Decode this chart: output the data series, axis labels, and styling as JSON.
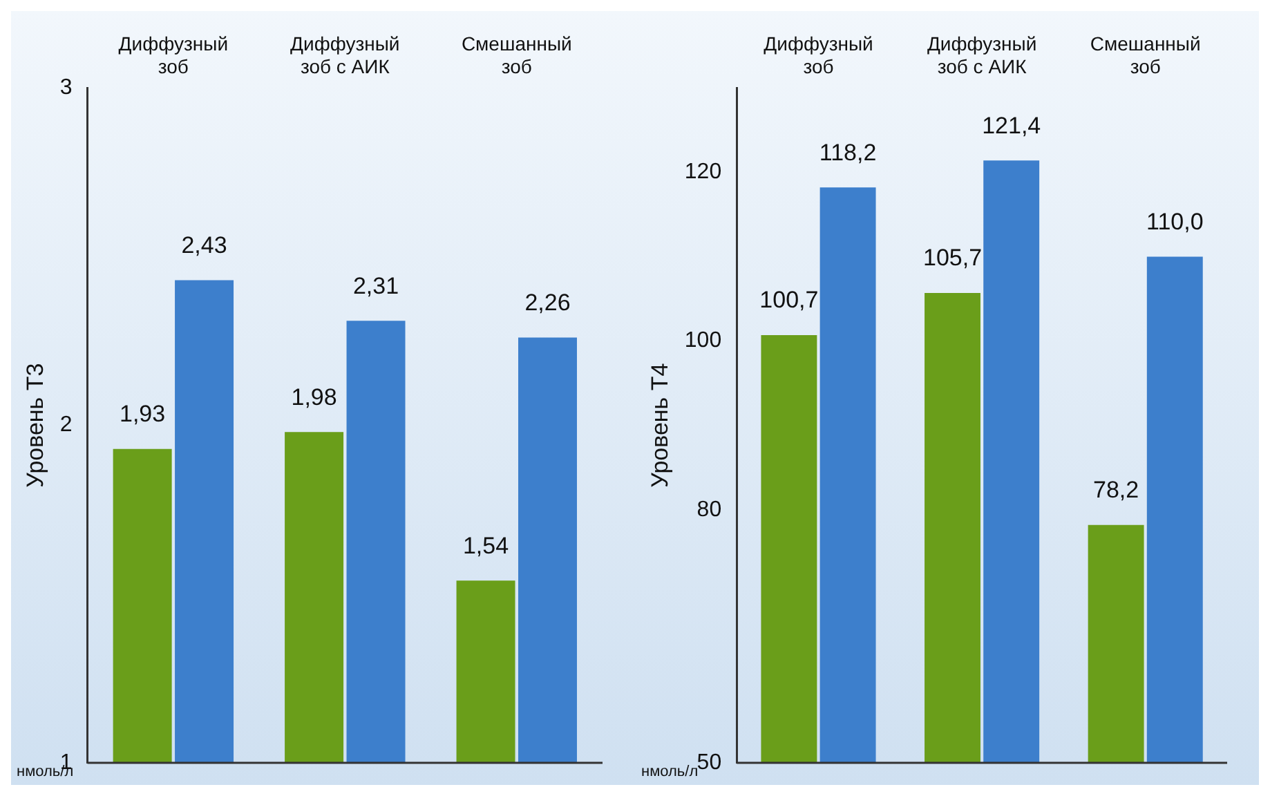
{
  "chart_data": [
    {
      "type": "bar",
      "ylabel": "Уровень Т3",
      "categories": [
        "Диффузный зоб",
        "Диффузный зоб с АИК",
        "Смешанный зоб"
      ],
      "ylim": [
        1,
        3
      ],
      "yticks": [
        1,
        2,
        3
      ],
      "grid": false,
      "legend": false,
      "annotations": [
        "нмоль/л"
      ],
      "series": [
        {
          "color": "#6a9e1a",
          "values": [
            1.93,
            1.98,
            1.54
          ],
          "value_labels": [
            "1,93",
            "1,98",
            "1,54"
          ]
        },
        {
          "color": "#3d7fcc",
          "values": [
            2.43,
            2.31,
            2.26
          ],
          "value_labels": [
            "2,43",
            "2,31",
            "2,26"
          ]
        }
      ]
    },
    {
      "type": "bar",
      "ylabel": "Уровень Т4",
      "categories": [
        "Диффузный зоб",
        "Диффузный зоб с АИК",
        "Смешанный зоб"
      ],
      "ylim": [
        50,
        130
      ],
      "yticks": [
        50,
        80,
        100,
        120
      ],
      "grid": false,
      "legend": false,
      "annotations": [
        "нмоль/л"
      ],
      "series": [
        {
          "color": "#6a9e1a",
          "values": [
            100.7,
            105.7,
            78.2
          ],
          "value_labels": [
            "100,7",
            "105,7",
            "78,2"
          ]
        },
        {
          "color": "#3d7fcc",
          "values": [
            118.2,
            121.4,
            110.0
          ],
          "value_labels": [
            "118,2",
            "121,4",
            "110,0"
          ]
        }
      ]
    }
  ]
}
